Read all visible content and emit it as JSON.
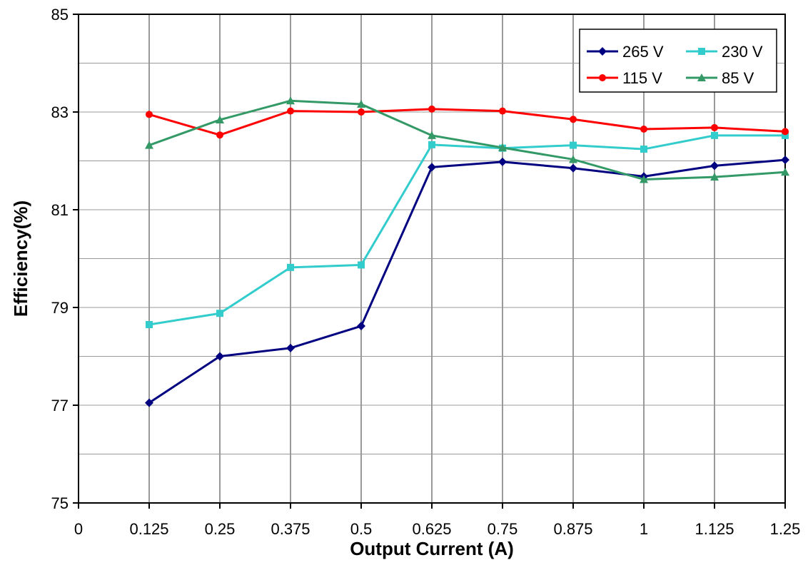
{
  "chart_data": {
    "type": "line",
    "title": "",
    "xlabel": "Output Current (A)",
    "ylabel": "Efficiency(%)",
    "x": [
      0.125,
      0.25,
      0.375,
      0.5,
      0.625,
      0.75,
      0.875,
      1,
      1.125,
      1.25
    ],
    "xlim": [
      0,
      1.25
    ],
    "ylim": [
      75,
      85
    ],
    "x_ticks": [
      "0",
      "0.125",
      "0.25",
      "0.375",
      "0.5",
      "0.625",
      "0.75",
      "0.875",
      "1",
      "1.125",
      "1.25"
    ],
    "y_ticks": [
      "75",
      "77",
      "79",
      "81",
      "83",
      "85"
    ],
    "grid": true,
    "legend_position": "top-right",
    "series": [
      {
        "name": "265 V",
        "color": "#000080",
        "marker": "diamond",
        "values": [
          77.05,
          78.0,
          78.17,
          78.62,
          81.87,
          81.98,
          81.85,
          81.68,
          81.9,
          82.02
        ]
      },
      {
        "name": "230 V",
        "color": "#33CCCC",
        "marker": "square",
        "values": [
          78.65,
          78.88,
          79.82,
          79.87,
          82.33,
          82.26,
          82.32,
          82.24,
          82.52,
          82.52
        ]
      },
      {
        "name": "115 V",
        "color": "#FF0000",
        "marker": "circle",
        "values": [
          82.95,
          82.53,
          83.02,
          83.0,
          83.06,
          83.02,
          82.85,
          82.65,
          82.68,
          82.6
        ]
      },
      {
        "name": "85 V",
        "color": "#339966",
        "marker": "triangle",
        "values": [
          82.32,
          82.84,
          83.23,
          83.16,
          82.52,
          82.27,
          82.03,
          81.62,
          81.67,
          81.77
        ]
      }
    ]
  }
}
